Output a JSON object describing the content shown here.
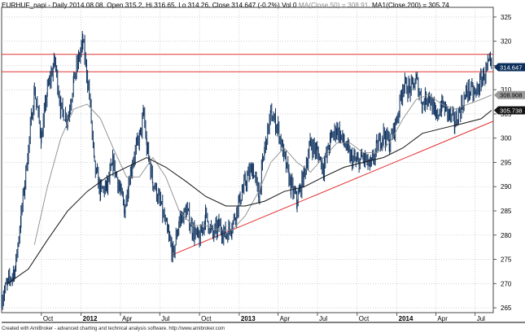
{
  "header": {
    "symbol_info": "EURHUF_napi - Daily 2014.08.08. Open 315.2, Hi 316.65, Lo 314.26, Close 314.647 (-0.2%) Vol 0",
    "ma50_text": "MA(Close,50) = 308.91,",
    "ma200_text": "MA1(Close,200) = 305.74"
  },
  "footer_text": "Created with AmiBroker - advanced charting and technical analysis software. http://www.amibroker.com",
  "colors": {
    "price": "#0b2f5c",
    "ma50": "#8c8c8c",
    "ma200": "#141414",
    "trendlines": "#e03030",
    "grid": "#b4b4b4"
  },
  "chart_data": {
    "type": "line",
    "title": "EURHUF_napi - Daily",
    "ylim": [
      264,
      327
    ],
    "y_ticks": [
      265,
      270,
      275,
      280,
      285,
      290,
      295,
      300,
      305,
      310,
      315,
      320,
      325
    ],
    "x_ticks": [
      "Oct",
      "2012",
      "Apr",
      "Jul",
      "Oct",
      "2013",
      "Apr",
      "Jul",
      "Oct",
      "2014",
      "Apr",
      "Jul"
    ],
    "x_tick_dates": [
      "2011-10-01",
      "2012-01-01",
      "2012-04-01",
      "2012-07-01",
      "2012-10-01",
      "2013-01-01",
      "2013-04-01",
      "2013-07-01",
      "2013-10-01",
      "2014-01-01",
      "2014-04-01",
      "2014-07-01"
    ],
    "x_range": [
      "2011-07-01",
      "2014-08-12"
    ],
    "grid": true,
    "series": [
      {
        "name": "EURHUF_napi",
        "style": "bars",
        "points": [
          [
            "2011-07-01",
            267
          ],
          [
            "2011-07-15",
            270
          ],
          [
            "2011-08-01",
            273
          ],
          [
            "2011-08-15",
            284
          ],
          [
            "2011-09-01",
            298
          ],
          [
            "2011-09-15",
            310
          ],
          [
            "2011-10-01",
            300
          ],
          [
            "2011-10-15",
            310
          ],
          [
            "2011-11-01",
            316
          ],
          [
            "2011-11-15",
            306
          ],
          [
            "2011-12-01",
            304
          ],
          [
            "2011-12-15",
            312
          ],
          [
            "2012-01-05",
            320
          ],
          [
            "2012-01-20",
            309
          ],
          [
            "2012-02-01",
            294
          ],
          [
            "2012-02-15",
            289
          ],
          [
            "2012-03-01",
            290
          ],
          [
            "2012-03-15",
            295
          ],
          [
            "2012-04-01",
            289
          ],
          [
            "2012-04-10",
            285
          ],
          [
            "2012-04-20",
            291
          ],
          [
            "2012-05-01",
            296
          ],
          [
            "2012-05-15",
            300
          ],
          [
            "2012-05-25",
            305
          ],
          [
            "2012-06-01",
            298
          ],
          [
            "2012-06-15",
            291
          ],
          [
            "2012-07-01",
            287
          ],
          [
            "2012-07-20",
            280
          ],
          [
            "2012-08-01",
            276
          ],
          [
            "2012-08-15",
            283
          ],
          [
            "2012-09-01",
            285
          ],
          [
            "2012-09-15",
            281
          ],
          [
            "2012-10-01",
            279
          ],
          [
            "2012-10-15",
            284
          ],
          [
            "2012-11-01",
            280
          ],
          [
            "2012-11-15",
            282
          ],
          [
            "2012-12-01",
            280
          ],
          [
            "2012-12-15",
            282
          ],
          [
            "2013-01-01",
            287
          ],
          [
            "2013-01-15",
            291
          ],
          [
            "2013-02-01",
            294
          ],
          [
            "2013-02-15",
            288
          ],
          [
            "2013-03-01",
            298
          ],
          [
            "2013-03-15",
            305
          ],
          [
            "2013-04-01",
            302
          ],
          [
            "2013-04-15",
            296
          ],
          [
            "2013-05-01",
            290
          ],
          [
            "2013-05-15",
            287
          ],
          [
            "2013-06-01",
            293
          ],
          [
            "2013-06-15",
            299
          ],
          [
            "2013-07-01",
            297
          ],
          [
            "2013-07-15",
            294
          ],
          [
            "2013-08-01",
            300
          ],
          [
            "2013-08-15",
            302
          ],
          [
            "2013-09-01",
            299
          ],
          [
            "2013-09-15",
            296
          ],
          [
            "2013-10-01",
            295
          ],
          [
            "2013-10-15",
            296
          ],
          [
            "2013-11-01",
            294
          ],
          [
            "2013-11-15",
            298
          ],
          [
            "2013-12-01",
            301
          ],
          [
            "2013-12-15",
            299
          ],
          [
            "2014-01-01",
            304
          ],
          [
            "2014-01-15",
            311
          ],
          [
            "2014-02-01",
            310
          ],
          [
            "2014-02-15",
            312
          ],
          [
            "2014-03-01",
            307
          ],
          [
            "2014-03-15",
            309
          ],
          [
            "2014-04-01",
            304
          ],
          [
            "2014-04-15",
            307
          ],
          [
            "2014-05-01",
            305
          ],
          [
            "2014-05-15",
            303
          ],
          [
            "2014-06-01",
            307
          ],
          [
            "2014-06-15",
            310
          ],
          [
            "2014-07-01",
            309
          ],
          [
            "2014-07-15",
            312
          ],
          [
            "2014-08-01",
            315
          ],
          [
            "2014-08-08",
            314.647
          ]
        ]
      },
      {
        "name": "MA(Close,50)",
        "style": "line",
        "points": [
          [
            "2011-09-15",
            278
          ],
          [
            "2011-10-15",
            290
          ],
          [
            "2011-11-15",
            300
          ],
          [
            "2011-12-15",
            306
          ],
          [
            "2012-01-15",
            307
          ],
          [
            "2012-02-15",
            304
          ],
          [
            "2012-03-15",
            298
          ],
          [
            "2012-04-15",
            292
          ],
          [
            "2012-05-15",
            292
          ],
          [
            "2012-06-15",
            296
          ],
          [
            "2012-07-15",
            292
          ],
          [
            "2012-08-15",
            285
          ],
          [
            "2012-09-15",
            282
          ],
          [
            "2012-10-15",
            282
          ],
          [
            "2012-11-15",
            281
          ],
          [
            "2012-12-15",
            281
          ],
          [
            "2013-01-15",
            284
          ],
          [
            "2013-02-15",
            289
          ],
          [
            "2013-03-15",
            295
          ],
          [
            "2013-04-15",
            298
          ],
          [
            "2013-05-15",
            295
          ],
          [
            "2013-06-15",
            293
          ],
          [
            "2013-07-15",
            296
          ],
          [
            "2013-08-15",
            299
          ],
          [
            "2013-09-15",
            299
          ],
          [
            "2013-10-15",
            297
          ],
          [
            "2013-11-15",
            297
          ],
          [
            "2013-12-15",
            299
          ],
          [
            "2014-01-15",
            304
          ],
          [
            "2014-02-15",
            308
          ],
          [
            "2014-03-15",
            309
          ],
          [
            "2014-04-15",
            307
          ],
          [
            "2014-05-15",
            306
          ],
          [
            "2014-06-15",
            307
          ],
          [
            "2014-07-15",
            308
          ],
          [
            "2014-08-08",
            308.91
          ]
        ]
      },
      {
        "name": "MA1(Close,200)",
        "style": "line",
        "points": [
          [
            "2011-07-15",
            270
          ],
          [
            "2011-09-01",
            273
          ],
          [
            "2011-10-15",
            279
          ],
          [
            "2011-12-01",
            285
          ],
          [
            "2012-01-15",
            289
          ],
          [
            "2012-03-01",
            292
          ],
          [
            "2012-04-15",
            294
          ],
          [
            "2012-06-01",
            296
          ],
          [
            "2012-07-15",
            294
          ],
          [
            "2012-09-01",
            291
          ],
          [
            "2012-10-15",
            288
          ],
          [
            "2012-12-01",
            286
          ],
          [
            "2013-01-15",
            286
          ],
          [
            "2013-03-01",
            287
          ],
          [
            "2013-04-15",
            289
          ],
          [
            "2013-06-01",
            290
          ],
          [
            "2013-07-15",
            292
          ],
          [
            "2013-09-01",
            294
          ],
          [
            "2013-10-15",
            295
          ],
          [
            "2013-12-01",
            296
          ],
          [
            "2014-01-15",
            298
          ],
          [
            "2014-03-01",
            301
          ],
          [
            "2014-04-15",
            302
          ],
          [
            "2014-06-01",
            303
          ],
          [
            "2014-07-15",
            304
          ],
          [
            "2014-08-08",
            305.74
          ]
        ]
      }
    ],
    "horizontal_lines": [
      317.3,
      313.7
    ],
    "trendlines": [
      {
        "start": [
          "2012-08-01",
          276
        ],
        "end": [
          "2014-08-12",
          303.5
        ]
      }
    ],
    "value_labels": [
      {
        "value": "314.647",
        "series": "EURHUF_napi",
        "y": 314.647
      },
      {
        "value": "308.908",
        "series": "MA(Close,50)",
        "y": 308.908
      },
      {
        "value": "305.738",
        "series": "MA1(Close,200)",
        "y": 305.738
      }
    ]
  }
}
